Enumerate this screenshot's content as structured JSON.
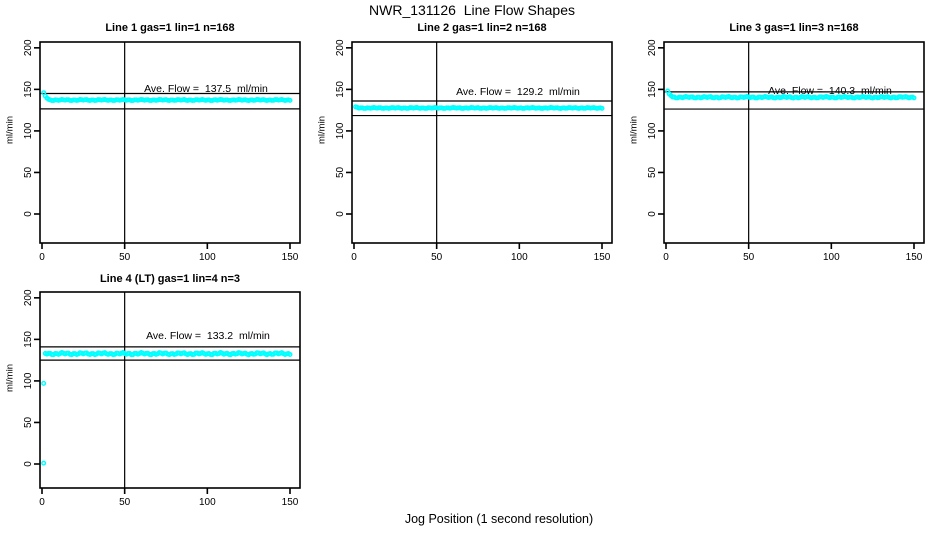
{
  "page": {
    "main_title": "NWR_131126  Line Flow Shapes",
    "x_axis_label": "Jog Position (1 second resolution)",
    "y_axis_label": "ml/min",
    "background_color": "#ffffff",
    "point_color": "#00ffff",
    "line_color": "#000000"
  },
  "chart_data": [
    {
      "type": "scatter",
      "title": "Line 1 gas=1 lin=1 n=168",
      "annotation": "Ave. Flow =  137.5  ml/min",
      "ave_flow": 137.5,
      "n": 168,
      "ylabel": "ml/min",
      "x_ticks": [
        0,
        50,
        100,
        150
      ],
      "y_ticks": [
        0,
        50,
        100,
        150,
        200
      ],
      "xlim": [
        -1.2,
        156
      ],
      "ylim": [
        -35,
        207
      ],
      "vline_x": 50,
      "hlines": [
        145.0,
        126.5
      ],
      "series": {
        "lead_points": [
          [
            1,
            146
          ],
          [
            2,
            142
          ],
          [
            3,
            139.5
          ],
          [
            4,
            138
          ]
        ],
        "steady": {
          "x_from": 5,
          "x_to": 150,
          "x_step": 1,
          "value": 137.2,
          "jitter": 0.7
        },
        "outliers": []
      }
    },
    {
      "type": "scatter",
      "title": "Line 2 gas=1 lin=2 n=168",
      "annotation": "Ave. Flow =  129.2  ml/min",
      "ave_flow": 129.2,
      "n": 168,
      "ylabel": "ml/min",
      "x_ticks": [
        0,
        50,
        100,
        150
      ],
      "y_ticks": [
        0,
        50,
        100,
        150,
        200
      ],
      "xlim": [
        -1.2,
        156
      ],
      "ylim": [
        -35,
        207
      ],
      "vline_x": 50,
      "hlines": [
        136.0,
        118.5
      ],
      "series": {
        "lead_points": [
          [
            1,
            129
          ],
          [
            2,
            128.3
          ]
        ],
        "steady": {
          "x_from": 3,
          "x_to": 150,
          "x_step": 1,
          "value": 127.6,
          "jitter": 0.6
        },
        "outliers": []
      }
    },
    {
      "type": "scatter",
      "title": "Line 3 gas=1 lin=3 n=168",
      "annotation": "Ave. Flow =  140.3  ml/min",
      "ave_flow": 140.3,
      "n": 168,
      "ylabel": "ml/min",
      "x_ticks": [
        0,
        50,
        100,
        150
      ],
      "y_ticks": [
        0,
        50,
        100,
        150,
        200
      ],
      "xlim": [
        -1.2,
        156
      ],
      "ylim": [
        -35,
        207
      ],
      "vline_x": 50,
      "hlines": [
        147.0,
        126.3
      ],
      "series": {
        "lead_points": [
          [
            1,
            148
          ],
          [
            2,
            144.5
          ],
          [
            3,
            142.5
          ]
        ],
        "steady": {
          "x_from": 4,
          "x_to": 150,
          "x_step": 1,
          "value": 140.5,
          "jitter": 1.0
        },
        "outliers": []
      }
    },
    {
      "type": "scatter",
      "title": "Line 4 (LT) gas=1 lin=4 n=3",
      "annotation": "Ave. Flow =  133.2  ml/min",
      "ave_flow": 133.2,
      "n": 3,
      "ylabel": "ml/min",
      "x_ticks": [
        0,
        50,
        100,
        150
      ],
      "y_ticks": [
        0,
        50,
        100,
        150,
        200
      ],
      "xlim": [
        -1.2,
        156
      ],
      "ylim": [
        -35,
        207
      ],
      "vline_x": 50,
      "hlines": [
        141.0,
        125.0
      ],
      "series": {
        "lead_points": [],
        "steady": {
          "x_from": 2,
          "x_to": 150,
          "x_step": 1,
          "value": 132.8,
          "jitter": 1.4
        },
        "outliers": [
          [
            1,
            97
          ],
          [
            1,
            1
          ]
        ]
      }
    }
  ]
}
